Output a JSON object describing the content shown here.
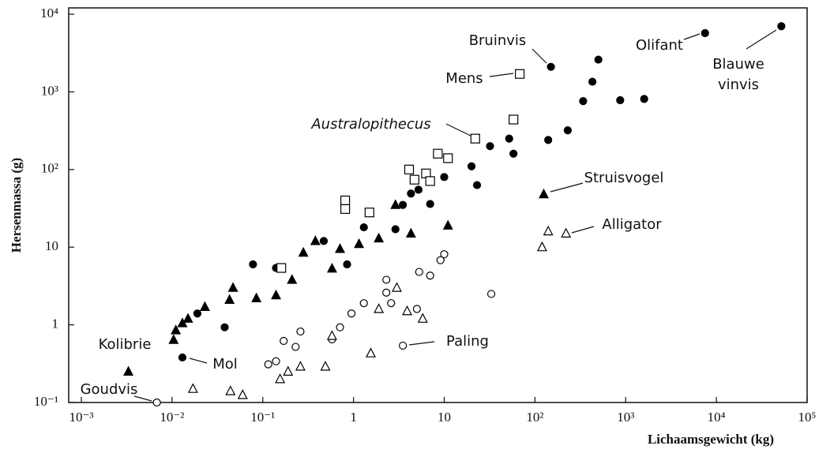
{
  "chart_data": {
    "type": "scatter",
    "xlabel": "Lichaamsgewicht (kg)",
    "ylabel": "Hersenmassa (g)",
    "log_x": true,
    "log_y": true,
    "xlim": [
      0.001,
      100000
    ],
    "ylim": [
      0.1,
      10000
    ],
    "xticks": [
      {
        "value": 0.001,
        "label": "10⁻³"
      },
      {
        "value": 0.01,
        "label": "10⁻²"
      },
      {
        "value": 0.1,
        "label": "10⁻¹"
      },
      1,
      10,
      {
        "value": 100,
        "label": "10²"
      },
      {
        "value": 1000,
        "label": "10³"
      },
      {
        "value": 10000,
        "label": "10⁴"
      },
      {
        "value": 100000,
        "label": "10⁵"
      }
    ],
    "yticks": [
      {
        "value": 0.1,
        "label": "10⁻¹"
      },
      1,
      10,
      {
        "value": 100,
        "label": "10²"
      },
      {
        "value": 1000,
        "label": "10³"
      },
      {
        "value": 10000,
        "label": "10⁴"
      }
    ],
    "series": [
      {
        "marker": "circle",
        "filled": true,
        "color": "#000",
        "x": [
          500,
          430,
          340,
          230,
          140,
          52,
          32,
          20,
          23,
          58,
          10,
          7,
          5.2,
          3.5,
          2.9,
          1.3,
          0.85,
          0.47,
          0.14,
          0.078,
          0.038,
          0.019,
          870,
          1600,
          4.3
        ],
        "y": [
          2600,
          1350,
          760,
          320,
          240,
          250,
          200,
          110,
          63,
          160,
          80,
          36,
          55,
          35,
          17,
          18,
          6,
          12,
          5.4,
          6,
          0.93,
          1.4,
          780,
          810,
          49
        ]
      },
      {
        "marker": "triangle",
        "filled": true,
        "color": "#000",
        "x": [
          11,
          4.3,
          2.9,
          1.9,
          1.15,
          0.71,
          0.58,
          0.38,
          0.28,
          0.21,
          0.14,
          0.085,
          0.047,
          0.043,
          0.023,
          0.015,
          0.011,
          0.0104,
          0.013
        ],
        "y": [
          19,
          15,
          35,
          13,
          11,
          9.5,
          5.3,
          12,
          8.5,
          3.8,
          2.4,
          2.2,
          3,
          2.1,
          1.7,
          1.2,
          0.85,
          0.64,
          1.05
        ]
      },
      {
        "marker": "square",
        "filled": false,
        "color": "#000",
        "x": [
          58,
          8.5,
          11,
          6.3,
          4.1,
          4.7,
          0.81,
          0.81,
          1.5,
          0.16,
          7
        ],
        "y": [
          440,
          160,
          140,
          89,
          100,
          74,
          40,
          31,
          28,
          5.4,
          71
        ]
      },
      {
        "marker": "circle",
        "filled": false,
        "color": "#000",
        "x": [
          10,
          9.1,
          7,
          5.3,
          2.3,
          2.3,
          2.6,
          1.3,
          0.95,
          0.71,
          0.58,
          0.26,
          0.23,
          0.17,
          0.14,
          0.115,
          33,
          5
        ],
        "y": [
          8.1,
          6.8,
          4.3,
          4.8,
          3.8,
          2.6,
          1.9,
          1.9,
          1.4,
          0.93,
          0.65,
          0.82,
          0.52,
          0.62,
          0.34,
          0.31,
          2.5,
          1.6
        ]
      },
      {
        "marker": "triangle",
        "filled": false,
        "color": "#000",
        "x": [
          120,
          3,
          1.9,
          3.9,
          5.8,
          0.58,
          0.49,
          0.26,
          0.19,
          0.155,
          1.55,
          0.06,
          0.044,
          0.017,
          140
        ],
        "y": [
          10,
          3,
          1.6,
          1.5,
          1.2,
          0.72,
          0.29,
          0.29,
          0.25,
          0.2,
          0.43,
          0.125,
          0.14,
          0.15,
          16
        ]
      }
    ],
    "annotations": [
      {
        "text": "Bruinvis",
        "x": 150,
        "y": 2100,
        "marker": "circle",
        "filled": true
      },
      {
        "text": "Olifant",
        "x": 7500,
        "y": 5700,
        "marker": "circle",
        "filled": true
      },
      {
        "lines": [
          "Blauwe",
          "vinvis"
        ],
        "x": 52000,
        "y": 7000,
        "marker": "circle",
        "filled": true
      },
      {
        "text": "Mens",
        "x": 68,
        "y": 1700,
        "marker": "square",
        "filled": false
      },
      {
        "text": "Australopithecus",
        "italic": true,
        "x": 22,
        "y": 250,
        "marker": "square",
        "filled": false
      },
      {
        "text": "Struisvogel",
        "x": 125,
        "y": 48,
        "marker": "triangle",
        "filled": true
      },
      {
        "text": "Alligator",
        "x": 220,
        "y": 15,
        "marker": "triangle",
        "filled": false
      },
      {
        "text": "Paling",
        "x": 3.5,
        "y": 0.54,
        "marker": "circle",
        "filled": false
      },
      {
        "text": "Mol",
        "x": 0.013,
        "y": 0.38,
        "marker": "circle",
        "filled": true
      },
      {
        "text": "Kolibrie",
        "x": 0.0033,
        "y": 0.25,
        "marker": "triangle",
        "filled": true
      },
      {
        "text": "Goudvis",
        "x": 0.0068,
        "y": 0.1,
        "marker": "circle",
        "filled": false
      }
    ]
  }
}
